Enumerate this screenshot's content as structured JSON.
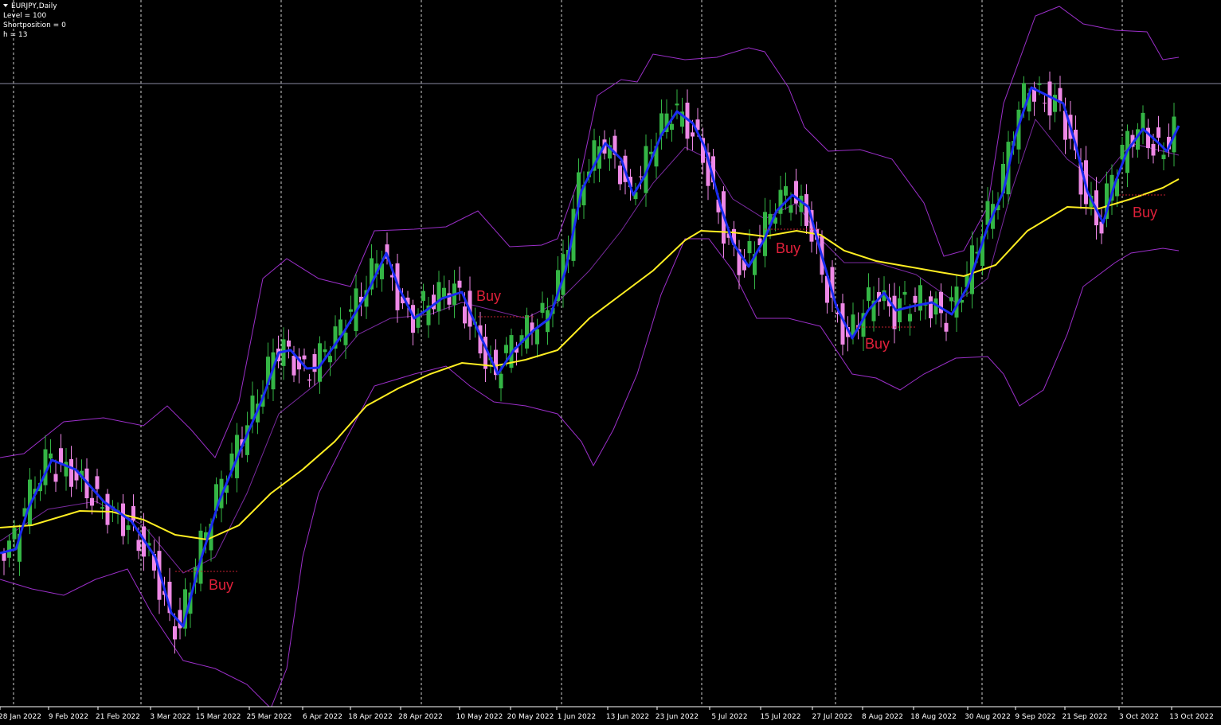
{
  "header": {
    "symbol": "EURJPY,Daily",
    "lines": [
      "Level = 100",
      "Shortposition = 0",
      "h = 13"
    ]
  },
  "x_axis": {
    "labels": [
      "28 Jan 2022",
      "9 Feb 2022",
      "21 Feb 2022",
      "3 Mar 2022",
      "15 Mar 2022",
      "25 Mar 2022",
      "6 Apr 2022",
      "18 Apr 2022",
      "28 Apr 2022",
      "10 May 2022",
      "20 May 2022",
      "1 Jun 2022",
      "13 Jun 2022",
      "23 Jun 2022",
      "5 Jul 2022",
      "15 Jul 2022",
      "27 Jul 2022",
      "8 Aug 2022",
      "18 Aug 2022",
      "30 Aug 2022",
      "9 Sep 2022",
      "21 Sep 2022",
      "3 Oct 2022",
      "13 Oct 2022"
    ]
  },
  "annotations": [
    "Buy",
    "Buy",
    "Buy",
    "Buy",
    "Buy"
  ]
}
